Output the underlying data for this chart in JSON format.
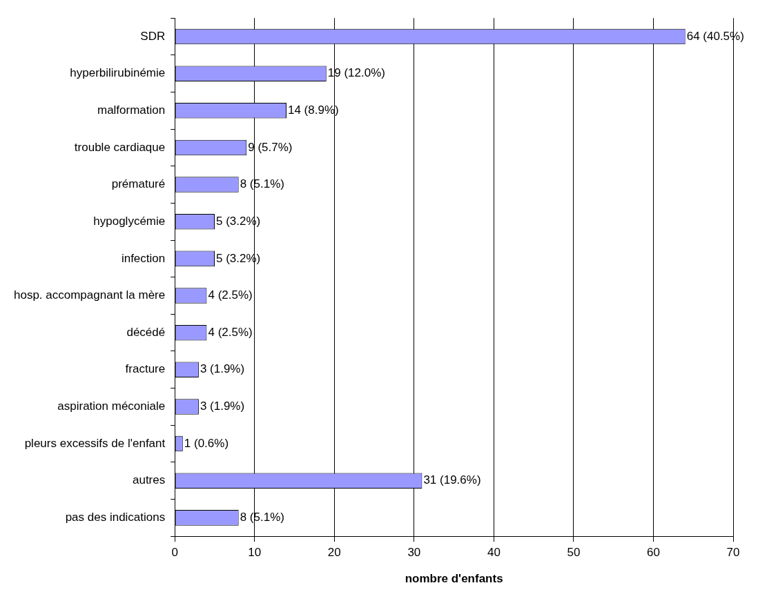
{
  "chart_data": {
    "type": "bar",
    "orientation": "horizontal",
    "xlabel": "nombre d'enfants",
    "categories": [
      "SDR",
      "hyperbilirubinémie",
      "malformation",
      "trouble cardiaque",
      "prématuré",
      "hypoglycémie",
      "infection",
      "hosp. accompagnant la mère",
      "décédé",
      "fracture",
      "aspiration méconiale",
      "pleurs excessifs de l'enfant",
      "autres",
      "pas des indications"
    ],
    "values": [
      64,
      19,
      14,
      9,
      8,
      5,
      5,
      4,
      4,
      3,
      3,
      1,
      31,
      8
    ],
    "value_labels": [
      "64 (40.5%)",
      "19 (12.0%)",
      "14 (8.9%)",
      "9 (5.7%)",
      "8 (5.1%)",
      "5 (3.2%)",
      "5 (3.2%)",
      "4 (2.5%)",
      "4 (2.5%)",
      "3 (1.9%)",
      "3 (1.9%)",
      "1 (0.6%)",
      "31 (19.6%)",
      "8 (5.1%)"
    ],
    "color": "#9999ff",
    "xlim": [
      0,
      70
    ],
    "xticks": [
      0,
      10,
      20,
      30,
      40,
      50,
      60,
      70
    ],
    "grid": "x",
    "legend": false
  }
}
